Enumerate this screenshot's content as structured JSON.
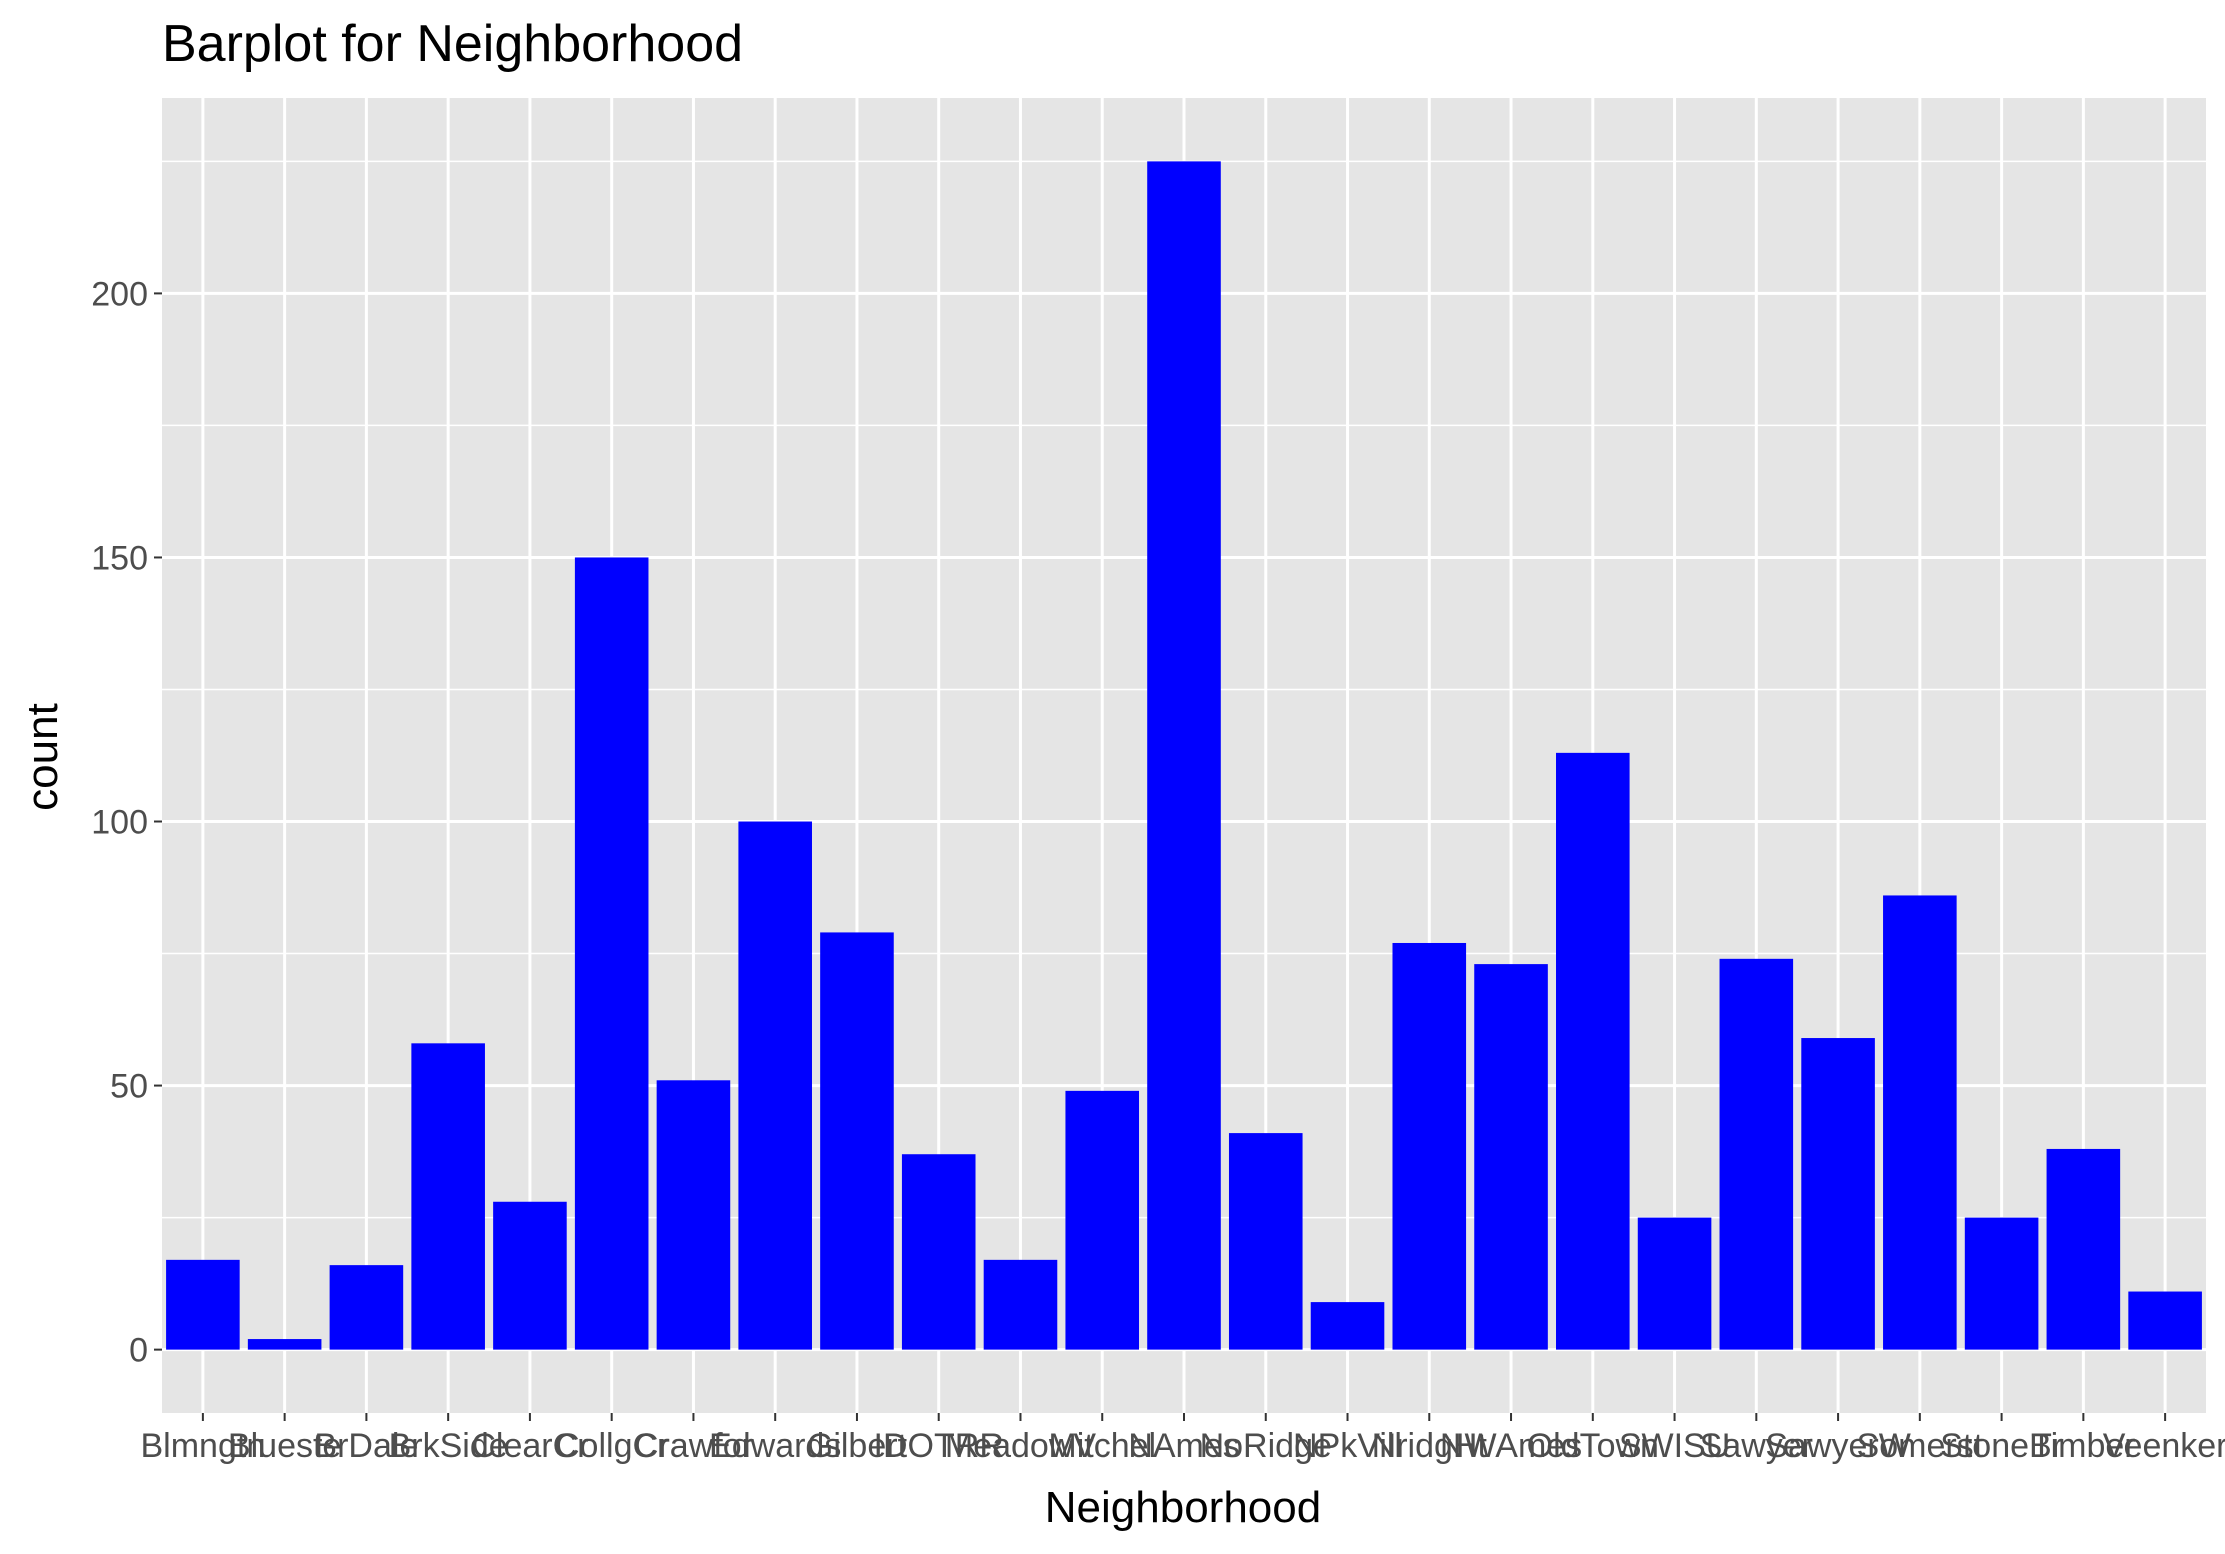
{
  "chart_data": {
    "type": "bar",
    "title": "Barplot for Neighborhood",
    "xlabel": "Neighborhood",
    "ylabel": "count",
    "categories": [
      "Blmngtn",
      "Blueste",
      "BrDale",
      "BrkSide",
      "ClearCr",
      "CollgCr",
      "Crawfor",
      "Edwards",
      "Gilbert",
      "IDOTRR",
      "MeadowV",
      "Mitchel",
      "NAmes",
      "NoRidge",
      "NPkVill",
      "NridgHt",
      "NWAmes",
      "OldTown",
      "SWISU",
      "Sawyer",
      "SawyerW",
      "Somerst",
      "StoneBr",
      "Timber",
      "Veenker"
    ],
    "values": [
      17,
      2,
      16,
      58,
      28,
      150,
      51,
      100,
      79,
      37,
      17,
      49,
      225,
      41,
      9,
      77,
      73,
      113,
      25,
      74,
      59,
      86,
      25,
      38,
      11
    ],
    "ylim": [
      -12,
      237
    ],
    "yticks": [
      0,
      50,
      100,
      150,
      200
    ],
    "bar_color": "#0000FF",
    "panel_color": "#E5E5E5",
    "grid": true,
    "legend": "none"
  }
}
